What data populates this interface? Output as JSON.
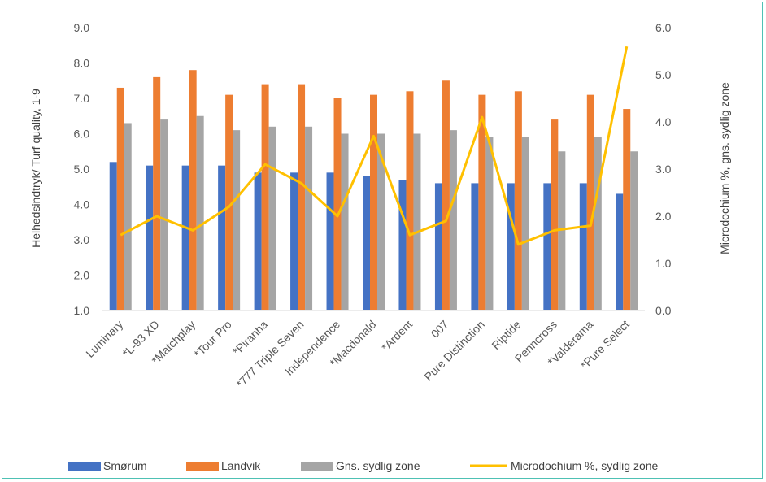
{
  "chart_data": {
    "type": "bar",
    "categories": [
      "Luminary",
      "*L-93 XD",
      "*Matchplay",
      "*Tour Pro",
      "*Piranha",
      "*777 Triple Seven",
      "Independence",
      "*Macdonald",
      "*Ardent",
      "007",
      "Pure Distinction",
      "Riptide",
      "Penncross",
      "*Valderama",
      "*Pure Select"
    ],
    "series": [
      {
        "name": "Smørum",
        "type": "bar",
        "axis": "left",
        "color": "#4472C4",
        "values": [
          5.2,
          5.1,
          5.1,
          5.1,
          4.9,
          4.9,
          4.9,
          4.8,
          4.7,
          4.6,
          4.6,
          4.6,
          4.6,
          4.6,
          4.3
        ]
      },
      {
        "name": "Landvik",
        "type": "bar",
        "axis": "left",
        "color": "#ED7D31",
        "values": [
          7.3,
          7.6,
          7.8,
          7.1,
          7.4,
          7.4,
          7.0,
          7.1,
          7.2,
          7.5,
          7.1,
          7.2,
          6.4,
          7.1,
          6.7
        ]
      },
      {
        "name": "Gns. sydlig zone",
        "type": "bar",
        "axis": "left",
        "color": "#A5A5A5",
        "values": [
          6.3,
          6.4,
          6.5,
          6.1,
          6.2,
          6.2,
          6.0,
          6.0,
          6.0,
          6.1,
          5.9,
          5.9,
          5.5,
          5.9,
          5.5
        ]
      },
      {
        "name": "Microdochium %, sydlig zone",
        "type": "line",
        "axis": "right",
        "color": "#FFC000",
        "values": [
          1.6,
          2.0,
          1.7,
          2.2,
          3.1,
          2.7,
          2.0,
          3.7,
          1.6,
          1.9,
          4.1,
          1.4,
          1.7,
          1.8,
          5.6
        ]
      }
    ],
    "ylabel": "Helhedsindtryk/ Turf quality, 1-9",
    "y2label": "Microdochium %, gns. sydlig zone",
    "ylim": [
      1.0,
      9.0
    ],
    "y2lim": [
      0.0,
      6.0
    ],
    "yticks": [
      "9.0",
      "8.0",
      "7.0",
      "6.0",
      "5.0",
      "4.0",
      "3.0",
      "2.0",
      "1.0"
    ],
    "y2ticks": [
      "6.0",
      "5.0",
      "4.0",
      "3.0",
      "2.0",
      "1.0",
      "0.0"
    ],
    "grid": false,
    "legend_position": "bottom"
  }
}
